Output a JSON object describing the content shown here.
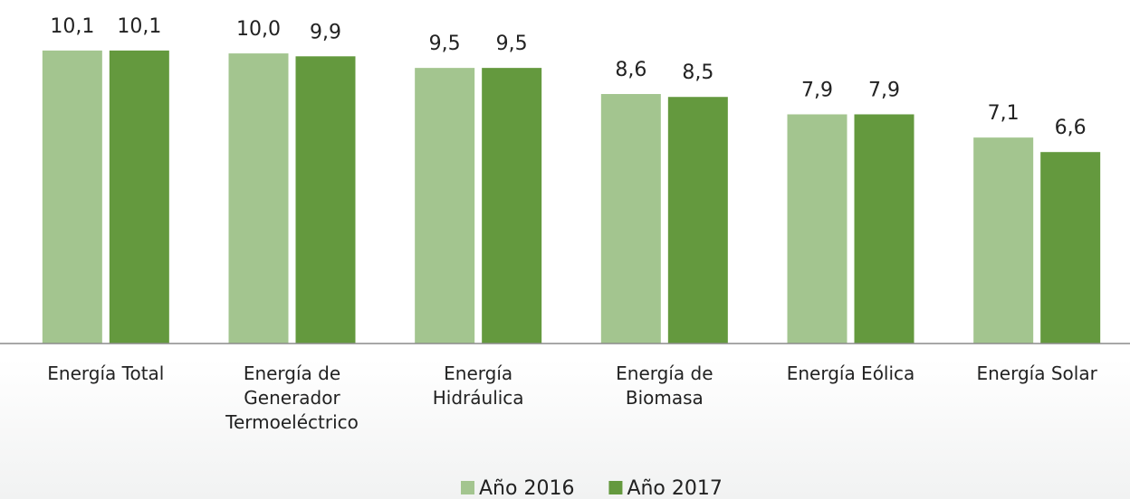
{
  "chart_data": {
    "type": "bar",
    "categories": [
      "Energía Total",
      "Energía de\nGenerador\nTermoeléctrico",
      "Energía\nHidráulica",
      "Energía de\nBiomasa",
      "Energía Eólica",
      "Energía Solar"
    ],
    "series": [
      {
        "name": "Año 2016",
        "color": "#a3c58f",
        "values": [
          10.1,
          10.0,
          9.5,
          8.6,
          7.9,
          7.1
        ],
        "value_labels": [
          "10,1",
          "10,0",
          "9,5",
          "8,6",
          "7,9",
          "7,1"
        ]
      },
      {
        "name": "Año 2017",
        "color": "#64993e",
        "values": [
          10.1,
          9.9,
          9.5,
          8.5,
          7.9,
          6.6
        ],
        "value_labels": [
          "10,1",
          "9,9",
          "9,5",
          "8,5",
          "7,9",
          "6,6"
        ]
      }
    ],
    "ylim": [
      0,
      11
    ],
    "legend": "bottom"
  }
}
